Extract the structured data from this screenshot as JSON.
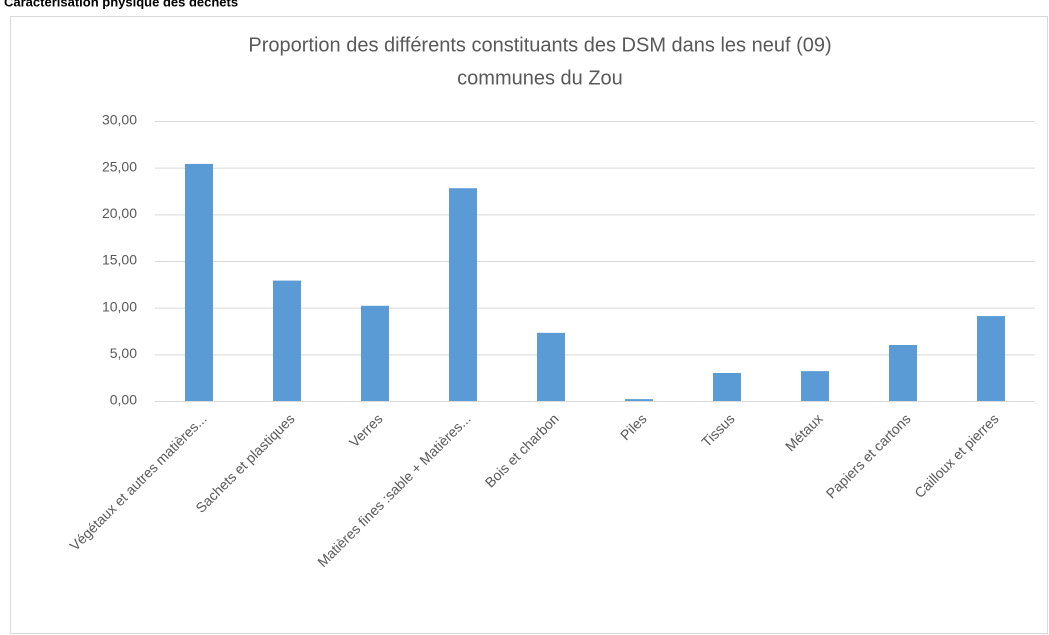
{
  "page_heading": "Caractérisation physique des déchets",
  "chart_data": {
    "type": "bar",
    "title": [
      "Proportion des différents constituants des DSM dans les neuf (09)",
      "communes du Zou"
    ],
    "categories": [
      "Végétaux et autres matières...",
      "Sachets et  plastiques",
      "Verres",
      "Matières fines :sable + Matières...",
      "Bois et charbon",
      "Piles",
      "Tissus",
      "Métaux",
      "Papiers et cartons",
      "Cailloux et pierres"
    ],
    "values": [
      25.4,
      12.9,
      10.2,
      22.8,
      7.3,
      0.2,
      3.0,
      3.2,
      6.0,
      9.1
    ],
    "color": "#5b9bd5",
    "ylim": [
      0,
      30
    ],
    "yticks": [
      {
        "value": 0,
        "label": "0,00"
      },
      {
        "value": 5,
        "label": "5,00"
      },
      {
        "value": 10,
        "label": "10,00"
      },
      {
        "value": 15,
        "label": "15,00"
      },
      {
        "value": 20,
        "label": "20,00"
      },
      {
        "value": 25,
        "label": "25,00"
      },
      {
        "value": 30,
        "label": "30,00"
      }
    ],
    "grid": true
  }
}
